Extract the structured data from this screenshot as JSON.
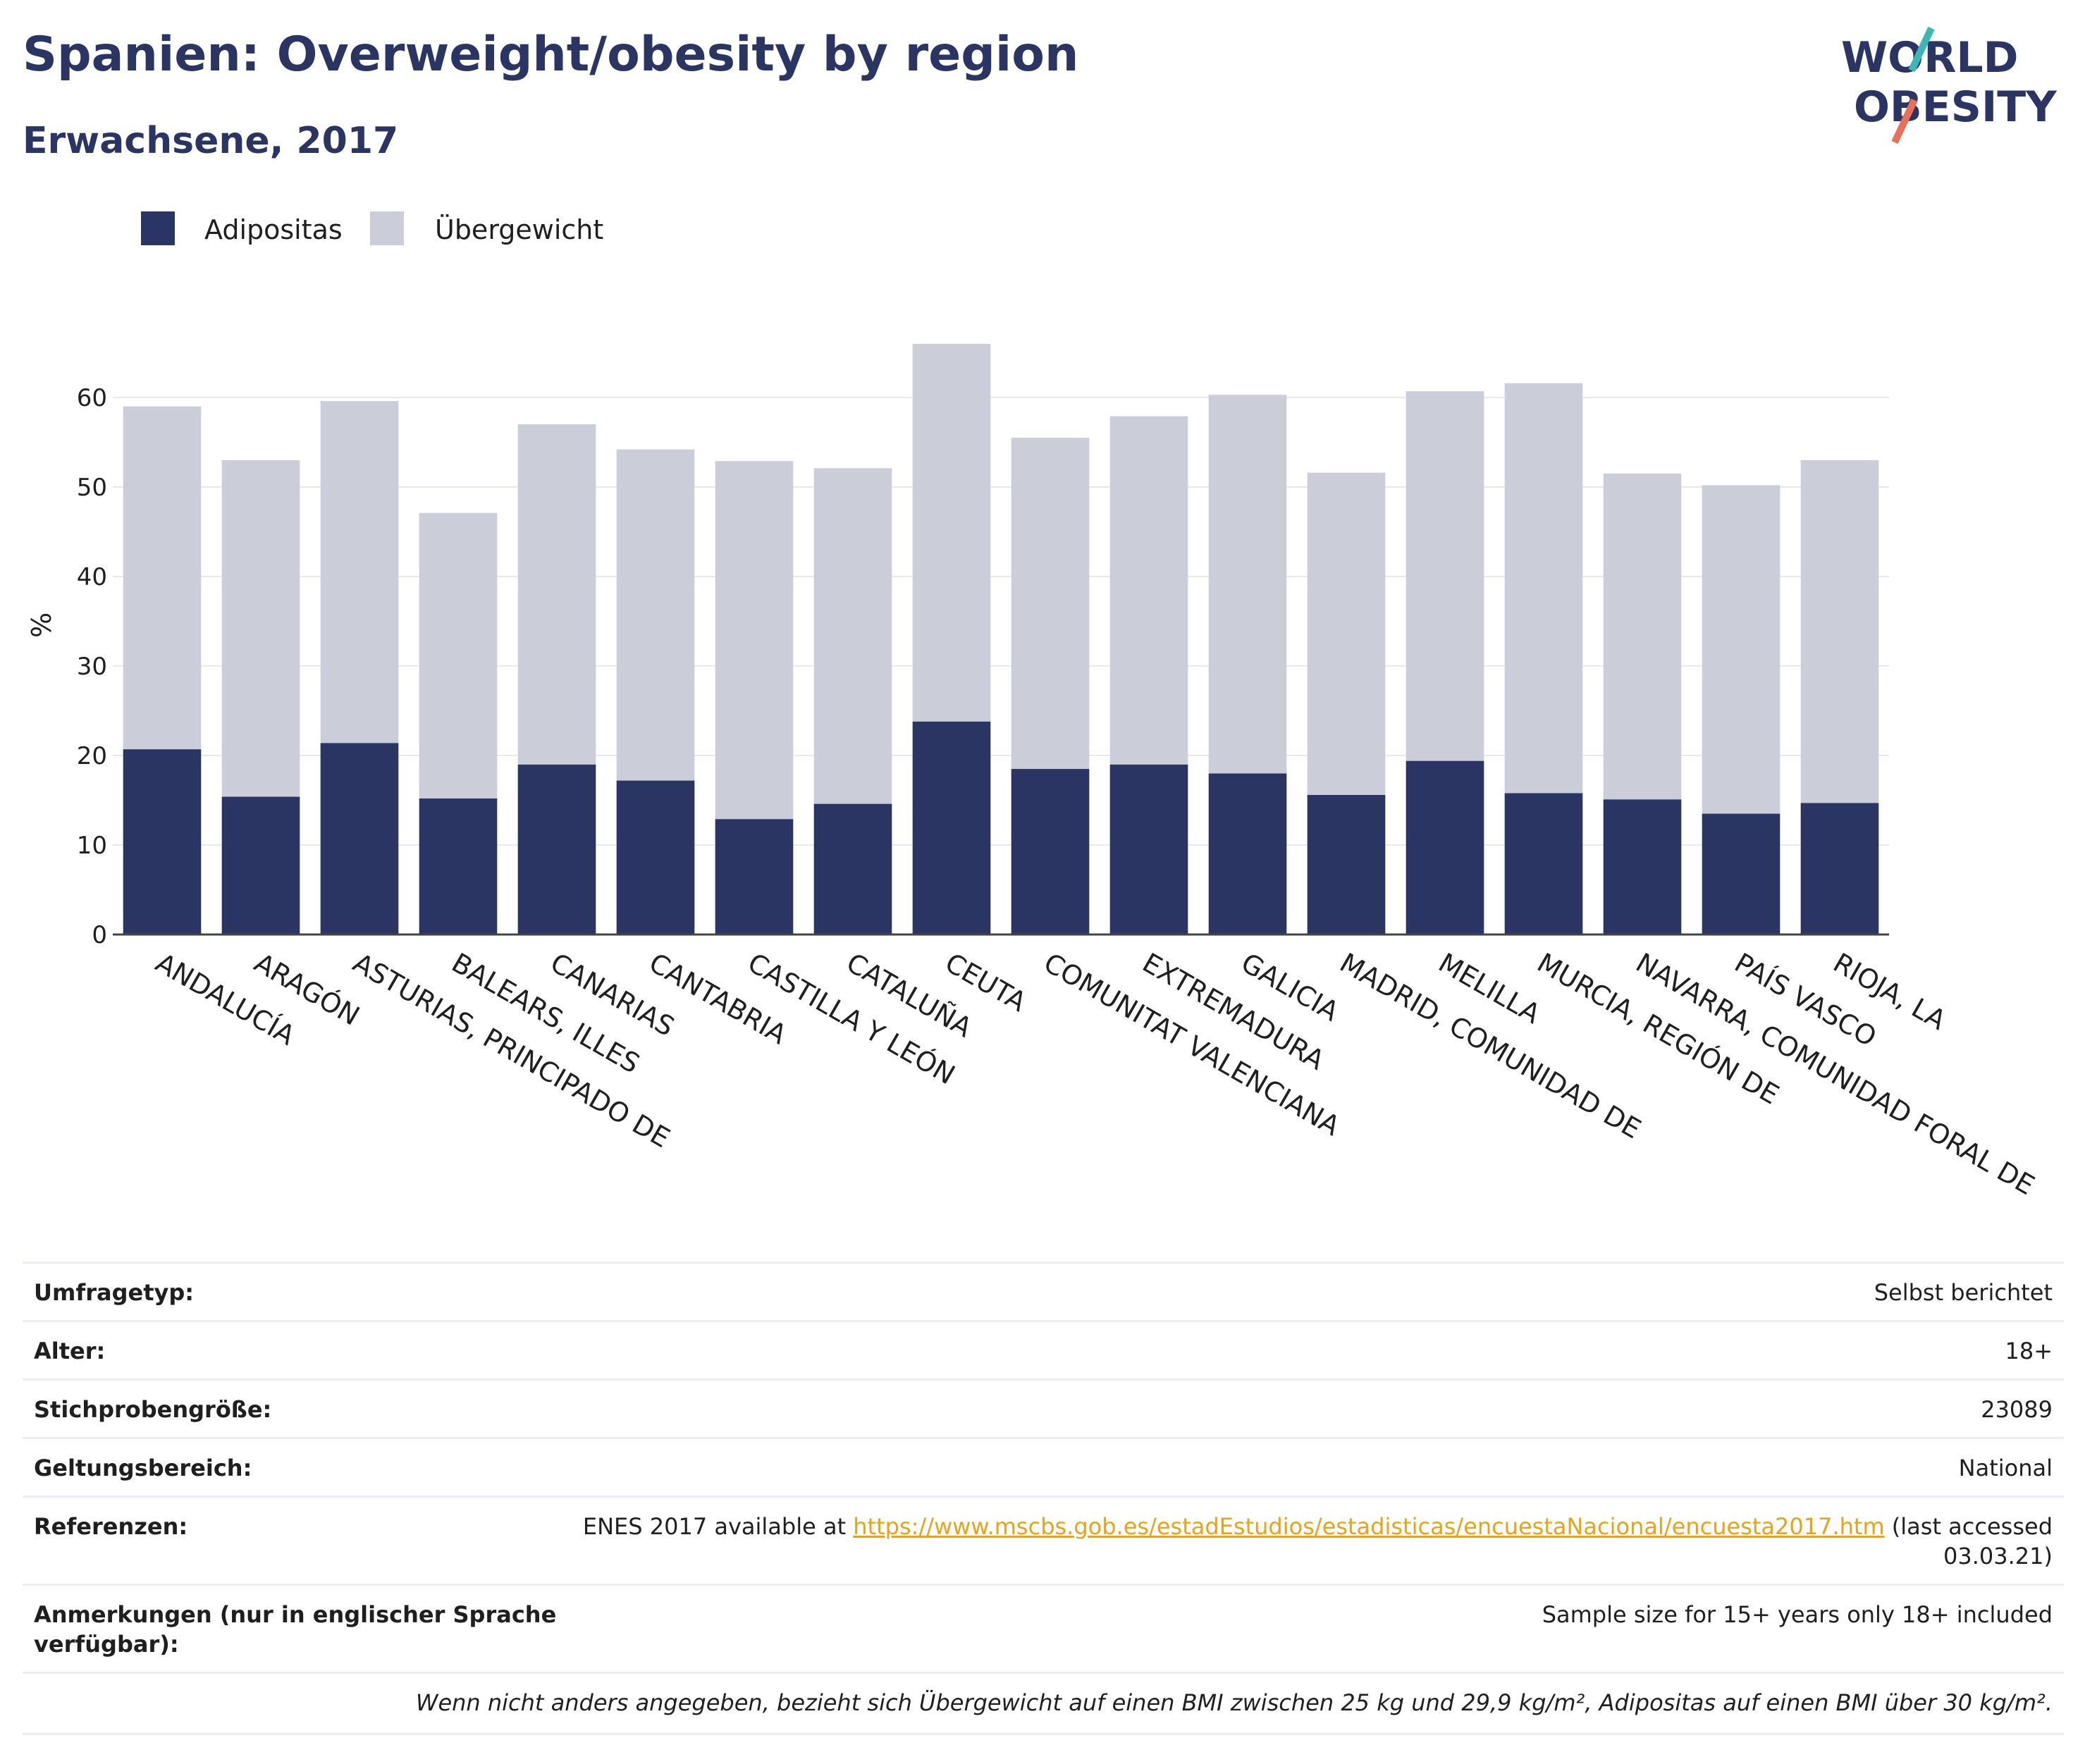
{
  "header": {
    "title": "Spanien: Overweight/obesity by region",
    "subtitle": "Erwachsene, 2017"
  },
  "logo": {
    "line1": "WORLD",
    "line2": "OBESITY"
  },
  "colors": {
    "obesity": "#2a3563",
    "overweight": "#cbcdd9",
    "accent_teal": "#3cb8b4",
    "accent_coral": "#e8705a",
    "link": "#e8a317"
  },
  "chart_data": {
    "type": "bar",
    "stacked": true,
    "categories": [
      "ANDALUCÍA",
      "ARAGÓN",
      "ASTURIAS, PRINCIPADO DE",
      "BALEARS, ILLES",
      "CANARIAS",
      "CANTABRIA",
      "CASTILLA Y LEÓN",
      "CATALUÑA",
      "CEUTA",
      "COMUNITAT VALENCIANA",
      "EXTREMADURA",
      "GALICIA",
      "MADRID, COMUNIDAD DE",
      "MELILLA",
      "MURCIA, REGIÓN DE",
      "NAVARRA, COMUNIDAD FORAL DE",
      "PAÍS VASCO",
      "RIOJA, LA"
    ],
    "series": [
      {
        "name": "Adipositas",
        "values": [
          20.7,
          15.4,
          21.4,
          15.2,
          19.0,
          17.2,
          12.9,
          14.6,
          23.8,
          18.5,
          19.0,
          18.0,
          15.6,
          19.4,
          15.8,
          15.1,
          13.5,
          14.7
        ]
      },
      {
        "name": "Übergewicht",
        "values": [
          38.3,
          37.6,
          38.2,
          31.9,
          38.0,
          37.0,
          40.0,
          37.5,
          42.2,
          37.0,
          38.9,
          42.3,
          36.0,
          41.3,
          45.8,
          36.4,
          36.7,
          38.3
        ]
      }
    ],
    "ylabel": "%",
    "ylim": [
      0,
      68
    ],
    "yticks": [
      0,
      10,
      20,
      30,
      40,
      50,
      60
    ],
    "grid": true,
    "legend_position": "top-left"
  },
  "meta": {
    "rows": [
      {
        "label": "Umfragetyp:",
        "value": "Selbst berichtet"
      },
      {
        "label": "Alter:",
        "value": "18+"
      },
      {
        "label": "Stichprobengröße:",
        "value": "23089"
      },
      {
        "label": "Geltungsbereich:",
        "value": "National"
      }
    ],
    "references": {
      "label": "Referenzen:",
      "prefix": "ENES 2017 available at ",
      "link": "https://www.mscbs.gob.es/estadEstudios/estadisticas/encuestaNacional/encuesta2017.htm",
      "suffix_line1": " (last accessed",
      "suffix_line2": "03.03.21)"
    },
    "notes": {
      "label_line1": "Anmerkungen (nur in englischer Sprache",
      "label_line2": "verfügbar):",
      "value": "Sample size for 15+ years only 18+ included"
    },
    "footnote": "Wenn nicht anders angegeben, bezieht sich Übergewicht auf einen BMI zwischen 25 kg und 29,9 kg/m², Adipositas auf einen BMI über 30 kg/m²."
  }
}
